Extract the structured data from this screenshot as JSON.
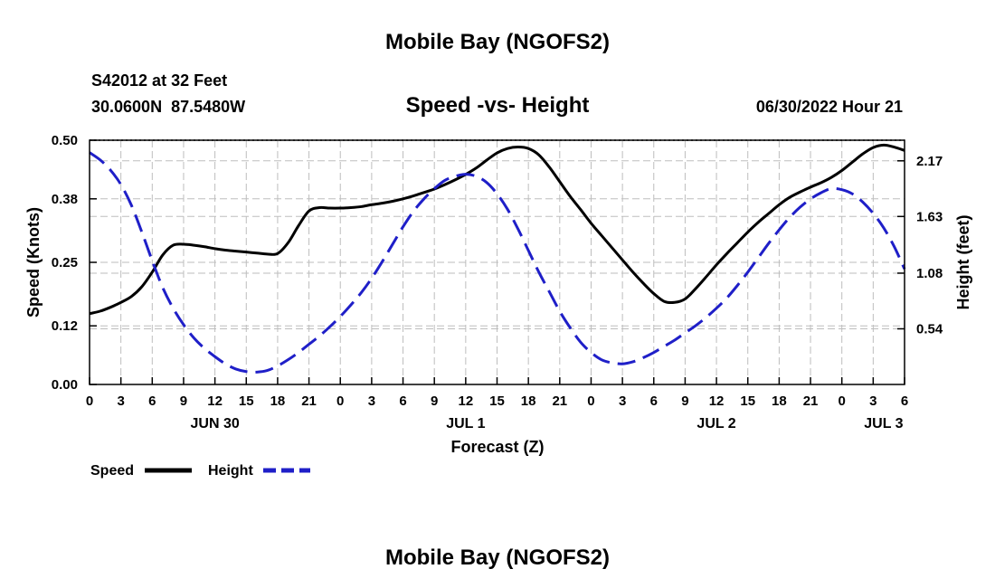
{
  "chart_data": {
    "type": "line",
    "title": "Mobile Bay (NGOFS2)",
    "subtitle": "Speed -vs- Height",
    "station": "S42012 at 32 Feet",
    "coordinates": "30.0600N  87.5480W",
    "timestamp": "06/30/2022 Hour 21",
    "footer_title": "Mobile Bay (NGOFS2)",
    "xlabel": "Forecast (Z)",
    "ylabel_left": "Speed (Knots)",
    "ylabel_right": "Height (feet)",
    "x_range_hours": [
      0,
      78
    ],
    "x_tick_labels": [
      "0",
      "3",
      "6",
      "9",
      "12",
      "15",
      "18",
      "21",
      "0",
      "3",
      "6",
      "9",
      "12",
      "15",
      "18",
      "21",
      "0",
      "3",
      "6",
      "9",
      "12",
      "15",
      "18",
      "21",
      "0",
      "3",
      "6"
    ],
    "day_labels": [
      {
        "label": "JUN 30",
        "hour": 12
      },
      {
        "label": "JUL 1",
        "hour": 36
      },
      {
        "label": "JUL 2",
        "hour": 60
      },
      {
        "label": "JUL 3",
        "hour": 76
      }
    ],
    "y_left": {
      "range": [
        0,
        0.5
      ],
      "ticks": [
        "0.00",
        "0.12",
        "0.25",
        "0.38",
        "0.50"
      ]
    },
    "y_right": {
      "range": [
        0,
        2.37
      ],
      "ticks": [
        "0.54",
        "1.08",
        "1.63",
        "2.17"
      ]
    },
    "grid": true,
    "legend_position": "bottom-left",
    "series": [
      {
        "name": "Speed",
        "color": "#000000",
        "style": "solid",
        "axis": "left",
        "x": [
          0,
          1,
          2,
          3,
          4,
          5,
          6,
          7,
          8,
          9,
          10,
          11,
          12,
          13,
          14,
          15,
          16,
          17,
          18,
          19,
          20,
          21,
          22,
          23,
          24,
          25,
          26,
          27,
          28,
          29,
          30,
          31,
          32,
          33,
          34,
          35,
          36,
          37,
          38,
          39,
          40,
          41,
          42,
          43,
          44,
          45,
          46,
          47,
          48,
          49,
          50,
          51,
          52,
          53,
          54,
          55,
          56,
          57,
          58,
          59,
          60,
          61,
          62,
          63,
          64,
          65,
          66,
          67,
          68,
          69,
          70,
          71,
          72,
          73,
          74,
          75,
          76,
          77,
          78
        ],
        "values": [
          0.145,
          0.15,
          0.158,
          0.168,
          0.18,
          0.2,
          0.23,
          0.265,
          0.285,
          0.287,
          0.285,
          0.282,
          0.278,
          0.275,
          0.273,
          0.271,
          0.269,
          0.267,
          0.268,
          0.29,
          0.325,
          0.355,
          0.362,
          0.361,
          0.361,
          0.362,
          0.364,
          0.368,
          0.371,
          0.375,
          0.38,
          0.386,
          0.393,
          0.4,
          0.409,
          0.419,
          0.43,
          0.443,
          0.459,
          0.474,
          0.483,
          0.486,
          0.483,
          0.47,
          0.445,
          0.415,
          0.385,
          0.358,
          0.33,
          0.305,
          0.28,
          0.255,
          0.23,
          0.207,
          0.186,
          0.17,
          0.168,
          0.175,
          0.196,
          0.22,
          0.245,
          0.268,
          0.29,
          0.312,
          0.332,
          0.35,
          0.368,
          0.383,
          0.394,
          0.404,
          0.413,
          0.424,
          0.438,
          0.455,
          0.472,
          0.485,
          0.49,
          0.486,
          0.479
        ]
      },
      {
        "name": "Height",
        "color": "#1f1fc8",
        "style": "dashed",
        "axis": "right",
        "x": [
          0,
          1,
          2,
          3,
          4,
          5,
          6,
          7,
          8,
          9,
          10,
          11,
          12,
          13,
          14,
          15,
          16,
          17,
          18,
          19,
          20,
          21,
          22,
          23,
          24,
          25,
          26,
          27,
          28,
          29,
          30,
          31,
          32,
          33,
          34,
          35,
          36,
          37,
          38,
          39,
          40,
          41,
          42,
          43,
          44,
          45,
          46,
          47,
          48,
          49,
          50,
          51,
          52,
          53,
          54,
          55,
          56,
          57,
          58,
          59,
          60,
          61,
          62,
          63,
          64,
          65,
          66,
          67,
          68,
          69,
          70,
          71,
          72,
          73,
          74,
          75,
          76,
          77,
          78
        ],
        "values": [
          2.25,
          2.18,
          2.08,
          1.94,
          1.74,
          1.48,
          1.2,
          0.94,
          0.74,
          0.58,
          0.45,
          0.35,
          0.27,
          0.2,
          0.15,
          0.125,
          0.12,
          0.135,
          0.18,
          0.24,
          0.31,
          0.39,
          0.47,
          0.56,
          0.66,
          0.77,
          0.89,
          1.03,
          1.19,
          1.36,
          1.53,
          1.68,
          1.8,
          1.9,
          1.98,
          2.02,
          2.04,
          2.02,
          1.96,
          1.85,
          1.7,
          1.51,
          1.3,
          1.09,
          0.9,
          0.71,
          0.55,
          0.41,
          0.31,
          0.24,
          0.21,
          0.2,
          0.22,
          0.26,
          0.31,
          0.37,
          0.43,
          0.5,
          0.57,
          0.65,
          0.74,
          0.84,
          0.96,
          1.09,
          1.23,
          1.37,
          1.5,
          1.62,
          1.72,
          1.8,
          1.86,
          1.9,
          1.89,
          1.85,
          1.77,
          1.66,
          1.52,
          1.34,
          1.12
        ]
      }
    ]
  },
  "legend": {
    "speed_label": "Speed",
    "height_label": "Height"
  }
}
